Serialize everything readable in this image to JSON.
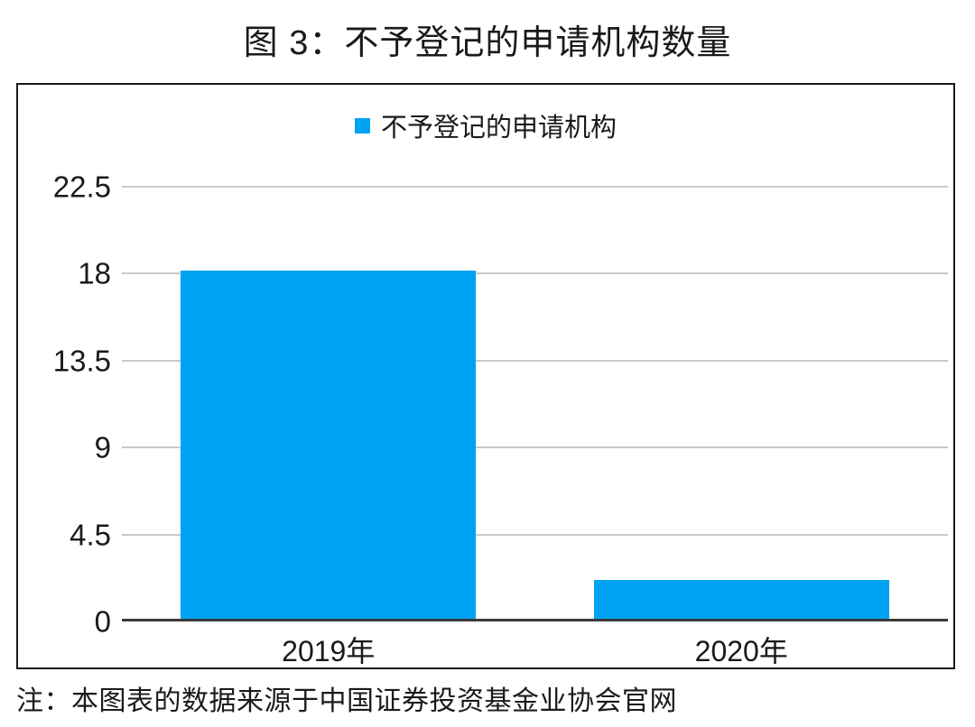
{
  "chart_data": {
    "type": "bar",
    "title": "图 3：不予登记的申请机构数量",
    "categories": [
      "2019年",
      "2020年"
    ],
    "series": [
      {
        "name": "不予登记的申请机构",
        "values": [
          18,
          2
        ]
      }
    ],
    "xlabel": "",
    "ylabel": "",
    "ylim": [
      0,
      22.5
    ],
    "yticks": [
      0,
      4.5,
      9,
      13.5,
      18,
      22.5
    ],
    "grid": true,
    "legend_position": "top-center",
    "bar_width_ratio": 0.715,
    "colors": {
      "bar": "#00A2F3",
      "gridline": "#C9C9C9",
      "zero_line": "#3A3A3A",
      "box_border": "#1A1A1A",
      "text": "#1A1A1A"
    },
    "note": "注：本图表的数据来源于中国证券投资基金业协会官网"
  }
}
